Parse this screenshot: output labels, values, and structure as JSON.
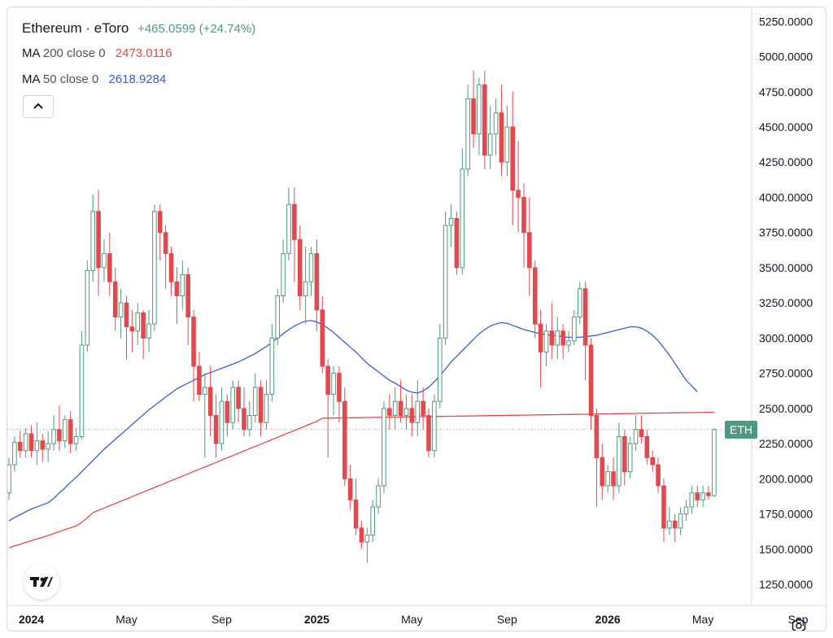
{
  "legend": {
    "symbol": "Ethereum · eToro",
    "change": "+465.0599 (+24.74%)",
    "ma200_name": "MA",
    "ma200_params": "200 close 0",
    "ma200_value": "2473.0116",
    "ma50_name": "MA",
    "ma50_params": "50 close 0",
    "ma50_value": "2618.9284"
  },
  "price_tag": "ETH",
  "colors": {
    "up": "#4e9a7e",
    "down": "#e04a4f",
    "ma200": "#e04a4f",
    "ma50": "#3b5bdb",
    "change": "#4e9a7e"
  },
  "icons": {
    "collapse": "chevron-up-icon",
    "logo": "tradingview-logo-icon",
    "settings": "settings-hexagon-icon"
  },
  "chart_data": {
    "type": "candlestick",
    "title": "Ethereum · eToro",
    "interval": "weekly",
    "ylim": [
      1100,
      5350
    ],
    "y_ticks": [
      "1250.0000",
      "1500.0000",
      "1750.0000",
      "2000.0000",
      "2250.0000",
      "2500.0000",
      "2750.0000",
      "3000.0000",
      "3250.0000",
      "3500.0000",
      "3750.0000",
      "4000.0000",
      "4250.0000",
      "4500.0000",
      "4750.0000",
      "5000.0000",
      "5250.0000"
    ],
    "y_tick_values": [
      1250,
      1500,
      1750,
      2000,
      2250,
      2500,
      2750,
      3000,
      3250,
      3500,
      3750,
      4000,
      4250,
      4500,
      4750,
      5000,
      5250
    ],
    "x_ticks": [
      {
        "label": "2024",
        "bold": true,
        "index": 4
      },
      {
        "label": "May",
        "bold": false,
        "index": 21
      },
      {
        "label": "Sep",
        "bold": false,
        "index": 38
      },
      {
        "label": "2025",
        "bold": true,
        "index": 55
      },
      {
        "label": "May",
        "bold": false,
        "index": 72
      },
      {
        "label": "Sep",
        "bold": false,
        "index": 89
      },
      {
        "label": "2026",
        "bold": true,
        "index": 107
      },
      {
        "label": "May",
        "bold": false,
        "index": 124
      },
      {
        "label": "Sep",
        "bold": false,
        "index": 141
      }
    ],
    "last_close": 2350,
    "candles": [
      [
        1900,
        2100,
        1850,
        2150
      ],
      [
        2100,
        2260,
        2050,
        2300
      ],
      [
        2260,
        2200,
        2150,
        2340
      ],
      [
        2200,
        2320,
        2150,
        2360
      ],
      [
        2320,
        2200,
        2150,
        2380
      ],
      [
        2200,
        2270,
        2100,
        2400
      ],
      [
        2270,
        2210,
        2120,
        2320
      ],
      [
        2210,
        2250,
        2120,
        2340
      ],
      [
        2250,
        2350,
        2200,
        2450
      ],
      [
        2350,
        2270,
        2200,
        2520
      ],
      [
        2270,
        2420,
        2220,
        2450
      ],
      [
        2420,
        2250,
        2180,
        2480
      ],
      [
        2250,
        2300,
        2200,
        2360
      ],
      [
        2300,
        2950,
        2280,
        3050
      ],
      [
        2950,
        3480,
        2900,
        3550
      ],
      [
        3480,
        3900,
        3400,
        4020
      ],
      [
        3900,
        3500,
        3300,
        4050
      ],
      [
        3500,
        3600,
        3400,
        3700
      ],
      [
        3600,
        3400,
        3300,
        3750
      ],
      [
        3400,
        3150,
        3050,
        3500
      ],
      [
        3150,
        3250,
        3000,
        3350
      ],
      [
        3250,
        3080,
        2850,
        3300
      ],
      [
        3080,
        3050,
        2900,
        3200
      ],
      [
        3050,
        3180,
        2950,
        3250
      ],
      [
        3180,
        3000,
        2850,
        3200
      ],
      [
        3000,
        3100,
        2900,
        3200
      ],
      [
        3100,
        3900,
        3050,
        3950
      ],
      [
        3900,
        3750,
        3550,
        3950
      ],
      [
        3750,
        3600,
        3350,
        3800
      ],
      [
        3600,
        3400,
        3300,
        3650
      ],
      [
        3400,
        3300,
        3100,
        3500
      ],
      [
        3300,
        3450,
        3200,
        3550
      ],
      [
        3450,
        3150,
        2950,
        3500
      ],
      [
        3150,
        2800,
        2550,
        3200
      ],
      [
        2800,
        2600,
        2550,
        2900
      ],
      [
        2600,
        2650,
        2150,
        2750
      ],
      [
        2650,
        2450,
        2300,
        2800
      ],
      [
        2450,
        2250,
        2150,
        2600
      ],
      [
        2250,
        2550,
        2200,
        2650
      ],
      [
        2550,
        2400,
        2300,
        2600
      ],
      [
        2400,
        2650,
        2350,
        2700
      ],
      [
        2650,
        2500,
        2400,
        2700
      ],
      [
        2500,
        2350,
        2300,
        2650
      ],
      [
        2350,
        2450,
        2300,
        2550
      ],
      [
        2450,
        2650,
        2400,
        2750
      ],
      [
        2650,
        2400,
        2300,
        2700
      ],
      [
        2400,
        2600,
        2350,
        2700
      ],
      [
        2600,
        3000,
        2550,
        3100
      ],
      [
        3000,
        3300,
        2950,
        3350
      ],
      [
        3300,
        3600,
        3250,
        3700
      ],
      [
        3600,
        3950,
        3550,
        4070
      ],
      [
        3950,
        3700,
        3400,
        4070
      ],
      [
        3700,
        3300,
        3200,
        3800
      ],
      [
        3300,
        3400,
        3100,
        3650
      ],
      [
        3400,
        3600,
        3300,
        3650
      ],
      [
        3600,
        3200,
        3050,
        3700
      ],
      [
        3200,
        2800,
        2750,
        3300
      ],
      [
        2800,
        2600,
        2150,
        2850
      ],
      [
        2600,
        2750,
        2450,
        2800
      ],
      [
        2750,
        2550,
        2400,
        2800
      ],
      [
        2550,
        2000,
        1950,
        2650
      ],
      [
        2000,
        1850,
        1780,
        2100
      ],
      [
        1850,
        1650,
        1600,
        2000
      ],
      [
        1650,
        1550,
        1500,
        1700
      ],
      [
        1550,
        1600,
        1400,
        1650
      ],
      [
        1600,
        1800,
        1550,
        1850
      ],
      [
        1800,
        1950,
        1750,
        2000
      ],
      [
        1950,
        2500,
        1900,
        2550
      ],
      [
        2500,
        2450,
        2350,
        2600
      ],
      [
        2450,
        2550,
        2350,
        2650
      ],
      [
        2550,
        2450,
        2400,
        2700
      ],
      [
        2450,
        2500,
        2350,
        2600
      ],
      [
        2500,
        2400,
        2300,
        2600
      ],
      [
        2400,
        2550,
        2300,
        2700
      ],
      [
        2550,
        2450,
        2350,
        2650
      ],
      [
        2450,
        2200,
        2150,
        2500
      ],
      [
        2200,
        2550,
        2150,
        2600
      ],
      [
        2550,
        3000,
        2500,
        3100
      ],
      [
        3000,
        3800,
        2950,
        3900
      ],
      [
        3800,
        3850,
        3650,
        3950
      ],
      [
        3850,
        3500,
        3450,
        3900
      ],
      [
        3500,
        4200,
        3450,
        4350
      ],
      [
        4200,
        4700,
        4150,
        4800
      ],
      [
        4700,
        4450,
        4350,
        4900
      ],
      [
        4450,
        4800,
        4300,
        4850
      ],
      [
        4800,
        4300,
        4200,
        4900
      ],
      [
        4300,
        4450,
        4200,
        4650
      ],
      [
        4450,
        4600,
        4300,
        4700
      ],
      [
        4600,
        4250,
        4150,
        4800
      ],
      [
        4250,
        4500,
        4150,
        4650
      ],
      [
        4500,
        4050,
        3800,
        4750
      ],
      [
        4050,
        4000,
        3750,
        4400
      ],
      [
        4000,
        3750,
        3500,
        4100
      ],
      [
        3750,
        3500,
        3300,
        4000
      ],
      [
        3500,
        3100,
        3000,
        3550
      ],
      [
        3100,
        2900,
        2650,
        3200
      ],
      [
        2900,
        3050,
        2800,
        3100
      ],
      [
        3050,
        2950,
        2850,
        3250
      ],
      [
        2950,
        3050,
        2850,
        3150
      ],
      [
        3050,
        2950,
        2850,
        3100
      ],
      [
        2950,
        2980,
        2900,
        3050
      ],
      [
        2980,
        3150,
        2950,
        3200
      ],
      [
        3150,
        3350,
        3100,
        3400
      ],
      [
        3350,
        2950,
        2700,
        3400
      ],
      [
        2950,
        2450,
        2350,
        3000
      ],
      [
        2450,
        2150,
        1800,
        2500
      ],
      [
        2150,
        1950,
        1850,
        2250
      ],
      [
        1950,
        2050,
        1900,
        2100
      ],
      [
        2050,
        1950,
        1850,
        2150
      ],
      [
        1950,
        2300,
        1900,
        2400
      ],
      [
        2300,
        2050,
        1950,
        2350
      ],
      [
        2050,
        2250,
        2000,
        2300
      ],
      [
        2250,
        2350,
        2200,
        2450
      ],
      [
        2350,
        2300,
        2250,
        2450
      ],
      [
        2300,
        2150,
        2100,
        2350
      ],
      [
        2150,
        2100,
        2050,
        2200
      ],
      [
        2100,
        1950,
        1900,
        2150
      ],
      [
        1950,
        1650,
        1550,
        2000
      ],
      [
        1650,
        1700,
        1600,
        1800
      ],
      [
        1700,
        1650,
        1550,
        1750
      ],
      [
        1650,
        1750,
        1600,
        1800
      ],
      [
        1750,
        1800,
        1700,
        1850
      ],
      [
        1800,
        1900,
        1750,
        1950
      ],
      [
        1900,
        1850,
        1800,
        1950
      ],
      [
        1850,
        1900,
        1800,
        1950
      ],
      [
        1900,
        1880,
        1850,
        1950
      ],
      [
        1880,
        2350,
        1870,
        2360
      ]
    ],
    "ma50": [
      1700,
      1725,
      1745,
      1765,
      1785,
      1800,
      1815,
      1830,
      1860,
      1900,
      1935,
      1975,
      2010,
      2050,
      2090,
      2130,
      2170,
      2210,
      2245,
      2280,
      2315,
      2350,
      2385,
      2420,
      2455,
      2490,
      2520,
      2550,
      2580,
      2610,
      2640,
      2660,
      2680,
      2700,
      2720,
      2740,
      2755,
      2770,
      2785,
      2800,
      2815,
      2830,
      2850,
      2870,
      2890,
      2915,
      2940,
      2970,
      3000,
      3030,
      3060,
      3085,
      3105,
      3120,
      3125,
      3115,
      3095,
      3070,
      3040,
      3005,
      2970,
      2935,
      2900,
      2860,
      2820,
      2790,
      2760,
      2730,
      2700,
      2680,
      2655,
      2630,
      2615,
      2610,
      2625,
      2650,
      2690,
      2730,
      2780,
      2830,
      2870,
      2910,
      2950,
      2990,
      3030,
      3060,
      3085,
      3100,
      3110,
      3105,
      3090,
      3075,
      3060,
      3050,
      3040,
      3030,
      3025,
      3020,
      3015,
      3010,
      3005,
      3005,
      3005,
      3010,
      3015,
      3020,
      3030,
      3040,
      3050,
      3060,
      3070,
      3080,
      3080,
      3070,
      3050,
      3020,
      2980,
      2930,
      2880,
      2820,
      2760,
      2700,
      2660,
      2618
    ]
  }
}
